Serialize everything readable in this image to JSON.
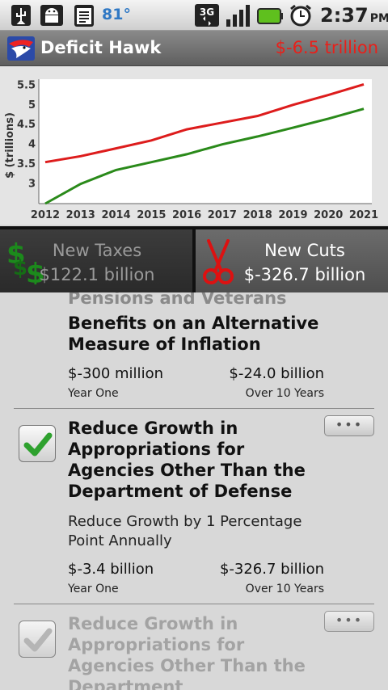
{
  "status_bar": {
    "temperature": "81°",
    "time": "2:37",
    "ampm": "PM",
    "network": "3G",
    "icons": [
      "usb-icon",
      "android-debug-icon",
      "clipboard-icon",
      "network-3g-icon",
      "signal-icon",
      "battery-icon",
      "alarm-icon"
    ]
  },
  "header": {
    "app_title": "Deficit Hawk",
    "deficit": "$-6.5 trillion",
    "deficit_color": "#e8201a"
  },
  "chart_data": {
    "type": "line",
    "ylabel": "$ (trillions)",
    "x": [
      2012,
      2013,
      2014,
      2015,
      2016,
      2017,
      2018,
      2019,
      2020,
      2021
    ],
    "x_tick_labels": [
      "2012",
      "2013",
      "2014",
      "2015",
      "2016",
      "2017",
      "2018",
      "2019",
      "2020",
      "2021"
    ],
    "y_tick_labels": [
      "3",
      "3.5",
      "4",
      "4.5",
      "5",
      "5.5"
    ],
    "y_ticks": [
      3,
      3.5,
      4,
      4.5,
      5,
      5.5
    ],
    "ylim": [
      2.5,
      5.65
    ],
    "grid": false,
    "series": [
      {
        "color": "#dd1c1c",
        "values": [
          3.55,
          3.7,
          3.9,
          4.1,
          4.38,
          4.55,
          4.72,
          5.0,
          5.25,
          5.52
        ]
      },
      {
        "color": "#2a8a1a",
        "values": [
          2.5,
          3.0,
          3.35,
          3.55,
          3.75,
          4.0,
          4.2,
          4.42,
          4.65,
          4.9
        ]
      }
    ]
  },
  "tabs": {
    "taxes_label": "New Taxes",
    "taxes_value": "$122.1 billion",
    "cuts_label": "New Cuts",
    "cuts_value": "$-326.7 billion"
  },
  "list": {
    "item0": {
      "partial_heading": "Pensions and Veterans",
      "title": "Benefits on an Alternative Measure of Inflation",
      "year_one_value": "$-300 million",
      "ten_year_value": "$-24.0 billion",
      "year_one_label": "Year One",
      "ten_year_label": "Over 10 Years"
    },
    "item1": {
      "title": "Reduce Growth in Appropriations for Agencies Other Than the Department of Defense",
      "description": "Reduce Growth by 1 Percentage Point Annually",
      "year_one_value": "$-3.4 billion",
      "ten_year_value": "$-326.7 billion",
      "year_one_label": "Year One",
      "ten_year_label": "Over 10 Years",
      "checked": true,
      "more_label": "•••"
    },
    "item2": {
      "title": "Reduce Growth in Appropriations for Agencies Other Than the Department",
      "checked": true,
      "more_label": "•••"
    }
  }
}
